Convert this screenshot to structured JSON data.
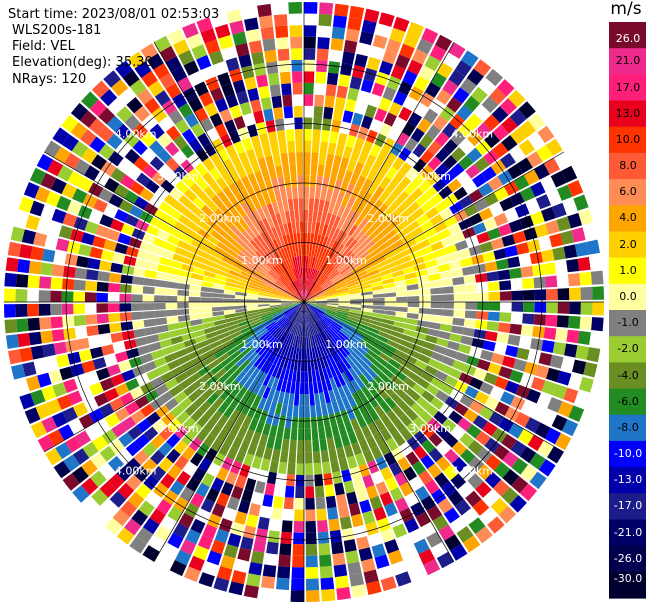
{
  "header": {
    "start_time": "Start time: 2023/08/01 02:53:03",
    "instrument": "WLS200s-181",
    "field": "Field: VEL",
    "elevation": "Elevation(deg): 35.30",
    "nrays": "NRays: 120"
  },
  "colorbar": {
    "title": "m/s",
    "ticks": [
      "26.0",
      "21.0",
      "17.0",
      "13.0",
      "10.0",
      "8.0",
      "6.0",
      "4.0",
      "2.0",
      "1.0",
      "0.0",
      "-1.0",
      "-2.0",
      "-4.0",
      "-6.0",
      "-8.0",
      "-10.0",
      "-13.0",
      "-17.0",
      "-21.0",
      "-26.0",
      "-30.0"
    ],
    "colors": [
      "#7a0a2c",
      "#ee2a8c",
      "#ff1f7a",
      "#e8001c",
      "#ff3300",
      "#ff5a36",
      "#ff8c55",
      "#ffa500",
      "#ffd000",
      "#ffff00",
      "#ffffa0",
      "#808080",
      "#9acd32",
      "#6b8e23",
      "#228b22",
      "#1f75c8",
      "#0000ff",
      "#0000aa",
      "#1c1c8a",
      "#000066",
      "#00004d",
      "#00002e"
    ]
  },
  "chart_data": {
    "type": "heatmap",
    "field": "VEL",
    "units": "m/s",
    "num_rays": 120,
    "elevation_deg": 35.3,
    "max_range_km": 4.0,
    "valid_data_range_km": 2.8,
    "range_ring_labels": [
      "1.00km",
      "2.00km",
      "3.00km",
      "4.00km"
    ],
    "velocity_pattern": {
      "top_near": "17.0 to 13.0 (orange-red)",
      "top_mid": "8.0 to 4.0 (orange)",
      "top_outer": "2.0 to 1.0 (yellow)",
      "left_right_ends": "0.0 (grey)",
      "bottom_near": "-10.0 to -8.0 (blue)",
      "bottom_mid": "-6.0 (green)",
      "bottom_outer": "-2.0 to -4.0 (yellow-green / olive)",
      "beyond_2.8km": "noise (all colors)"
    }
  }
}
